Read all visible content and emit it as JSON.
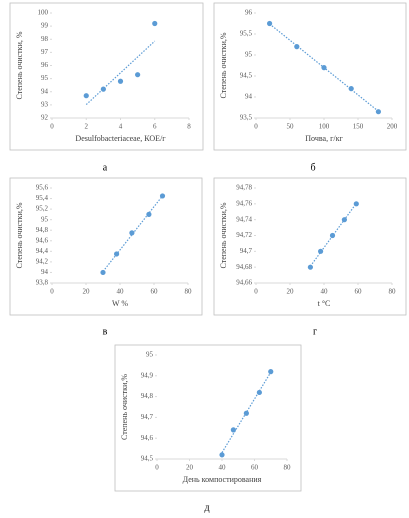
{
  "chart_data": [
    {
      "type": "scatter",
      "caption": "а",
      "xlabel": "Desulfobacteriaceae, КОЕ/г",
      "ylabel": "Степень очистки, %",
      "x": [
        2,
        3,
        4,
        5,
        6
      ],
      "values": [
        93.7,
        94.2,
        94.8,
        95.3,
        99.2
      ],
      "color": "#5b9bd5",
      "trendline": true,
      "xlim": [
        0,
        8
      ],
      "xticks": [
        0,
        2,
        4,
        6,
        8
      ],
      "ylim": [
        92,
        100
      ],
      "yticks": [
        92,
        93,
        94,
        95,
        96,
        97,
        98,
        99,
        100
      ]
    },
    {
      "type": "scatter",
      "caption": "б",
      "xlabel": "Почва, г/кг",
      "ylabel": "Степень очистки,%",
      "x": [
        20,
        60,
        100,
        140,
        180
      ],
      "values": [
        95.75,
        95.2,
        94.7,
        94.2,
        93.65
      ],
      "color": "#5b9bd5",
      "trendline": true,
      "xlim": [
        0,
        200
      ],
      "xticks": [
        0,
        50,
        100,
        150,
        200
      ],
      "ylim": [
        93.5,
        96
      ],
      "yticks": [
        {
          "value": 93.5,
          "label": "93,5"
        },
        94,
        {
          "value": 94.5,
          "label": "94,5"
        },
        95,
        {
          "value": 95.5,
          "label": "95,5"
        },
        96
      ]
    },
    {
      "type": "scatter",
      "caption": "в",
      "xlabel": "W  %",
      "ylabel": "Степень очистки,%",
      "x": [
        30,
        38,
        47,
        57,
        65
      ],
      "values": [
        94.0,
        94.35,
        94.75,
        95.1,
        95.45
      ],
      "color": "#5b9bd5",
      "trendline": true,
      "xlim": [
        0,
        80
      ],
      "xticks": [
        0,
        20,
        40,
        60,
        80
      ],
      "ylim": [
        93.8,
        95.6
      ],
      "yticks": [
        {
          "value": 93.8,
          "label": "93,8"
        },
        94,
        {
          "value": 94.2,
          "label": "94,2"
        },
        {
          "value": 94.4,
          "label": "94,4"
        },
        {
          "value": 94.6,
          "label": "94,6"
        },
        {
          "value": 94.8,
          "label": "94,8"
        },
        95,
        {
          "value": 95.2,
          "label": "95,2"
        },
        {
          "value": 95.4,
          "label": "95,4"
        },
        {
          "value": 95.6,
          "label": "95,6"
        }
      ]
    },
    {
      "type": "scatter",
      "caption": "г",
      "xlabel": "t °C",
      "ylabel": "Степень очистки,%",
      "x": [
        32,
        38,
        45,
        52,
        59
      ],
      "values": [
        94.68,
        94.7,
        94.72,
        94.74,
        94.76
      ],
      "color": "#5b9bd5",
      "trendline": true,
      "xlim": [
        0,
        80
      ],
      "xticks": [
        0,
        20,
        40,
        60,
        80
      ],
      "ylim": [
        94.66,
        94.78
      ],
      "yticks": [
        {
          "value": 94.66,
          "label": "94,66"
        },
        {
          "value": 94.68,
          "label": "94,68"
        },
        {
          "value": 94.7,
          "label": "94,7"
        },
        {
          "value": 94.72,
          "label": "94,72"
        },
        {
          "value": 94.74,
          "label": "94,74"
        },
        {
          "value": 94.76,
          "label": "94,76"
        },
        {
          "value": 94.78,
          "label": "94,78"
        }
      ]
    },
    {
      "type": "scatter",
      "caption": "д",
      "xlabel": "День компостирования",
      "ylabel": "Степень очистки,%",
      "x": [
        40,
        47,
        55,
        63,
        70
      ],
      "values": [
        94.52,
        94.64,
        94.72,
        94.82,
        94.92
      ],
      "color": "#5b9bd5",
      "trendline": true,
      "xlim": [
        0,
        80
      ],
      "xticks": [
        0,
        20,
        40,
        60,
        80
      ],
      "ylim": [
        94.5,
        95
      ],
      "yticks": [
        {
          "value": 94.5,
          "label": "94,5"
        },
        {
          "value": 94.6,
          "label": "94,6"
        },
        {
          "value": 94.7,
          "label": "94,7"
        },
        {
          "value": 94.8,
          "label": "94,8"
        },
        {
          "value": 94.9,
          "label": "94,9"
        },
        95
      ]
    }
  ]
}
